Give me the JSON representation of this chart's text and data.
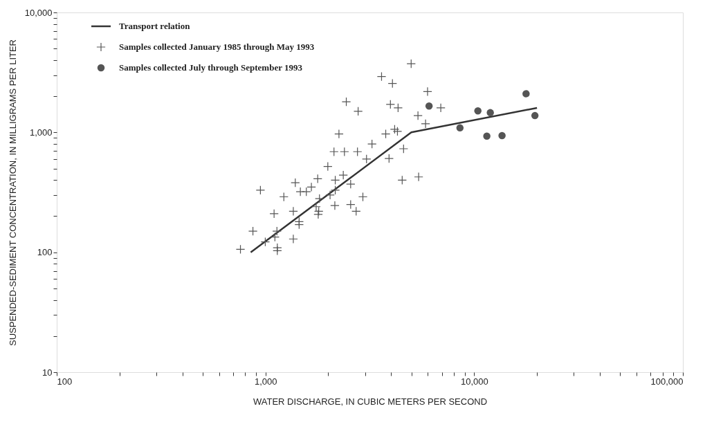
{
  "chart_data": {
    "type": "scatter",
    "xlabel": "WATER DISCHARGE, IN CUBIC METERS PER SECOND",
    "ylabel": "SUSPENDED-SEDIMENT CONCENTRATION, IN MILLIGRAMS PER LITER",
    "log": "xy",
    "grid": false,
    "legend": "top left",
    "xlim": [
      100,
      100000
    ],
    "ylim": [
      10,
      10000
    ],
    "xticks": [
      100,
      {
        "value": 200,
        "label": null
      },
      {
        "value": 300,
        "label": null
      },
      {
        "value": 400,
        "label": null
      },
      {
        "value": 500,
        "label": null
      },
      {
        "value": 600,
        "label": null
      },
      {
        "value": 700,
        "label": null
      },
      {
        "value": 800,
        "label": null
      },
      {
        "value": 900,
        "label": null
      },
      {
        "value": 1000,
        "label": "1,000"
      },
      {
        "value": 2000,
        "label": null
      },
      {
        "value": 3000,
        "label": null
      },
      {
        "value": 4000,
        "label": null
      },
      {
        "value": 5000,
        "label": null
      },
      {
        "value": 6000,
        "label": null
      },
      {
        "value": 7000,
        "label": null
      },
      {
        "value": 8000,
        "label": null
      },
      {
        "value": 9000,
        "label": null
      },
      {
        "value": 10000,
        "label": "10,000"
      },
      {
        "value": 20000,
        "label": null
      },
      {
        "value": 30000,
        "label": null
      },
      {
        "value": 40000,
        "label": null
      },
      {
        "value": 50000,
        "label": null
      },
      {
        "value": 60000,
        "label": null
      },
      {
        "value": 70000,
        "label": null
      },
      {
        "value": 80000,
        "label": null
      },
      {
        "value": 90000,
        "label": null
      },
      {
        "value": 100000,
        "label": "100,000"
      }
    ],
    "yticks": [
      10,
      {
        "value": 20,
        "label": null
      },
      {
        "value": 30,
        "label": null
      },
      {
        "value": 40,
        "label": null
      },
      {
        "value": 50,
        "label": null
      },
      {
        "value": 60,
        "label": null
      },
      {
        "value": 70,
        "label": null
      },
      {
        "value": 80,
        "label": null
      },
      {
        "value": 90,
        "label": null
      },
      100,
      {
        "value": 200,
        "label": null
      },
      {
        "value": 300,
        "label": null
      },
      {
        "value": 400,
        "label": null
      },
      {
        "value": 500,
        "label": null
      },
      {
        "value": 600,
        "label": null
      },
      {
        "value": 700,
        "label": null
      },
      {
        "value": 800,
        "label": null
      },
      {
        "value": 900,
        "label": null
      },
      {
        "value": 1000,
        "label": "1,000"
      },
      {
        "value": 2000,
        "label": null
      },
      {
        "value": 3000,
        "label": null
      },
      {
        "value": 4000,
        "label": null
      },
      {
        "value": 5000,
        "label": null
      },
      {
        "value": 6000,
        "label": null
      },
      {
        "value": 7000,
        "label": null
      },
      {
        "value": 8000,
        "label": null
      },
      {
        "value": 9000,
        "label": null
      },
      {
        "value": 10000,
        "label": "10,000"
      }
    ],
    "series": [
      {
        "name": "Transport relation",
        "type": "line",
        "color": "#333333",
        "line_style": "solid",
        "marker": "none",
        "x": [
          850,
          5000,
          20000
        ],
        "values": [
          100,
          1000,
          1600
        ]
      },
      {
        "name": "Samples collected January 1985 through May 1993",
        "type": "scatter",
        "color": "#555555",
        "marker": "cross",
        "x": [
          4990,
          3600,
          4060,
          5980,
          2440,
          2780,
          3970,
          4320,
          6920,
          5380,
          5850,
          4160,
          4290,
          3770,
          2250,
          3240,
          4590,
          2130,
          2390,
          2760,
          3050,
          3910,
          1990,
          2360,
          2160,
          4520,
          5420,
          1780,
          1390,
          2560,
          1660,
          1570,
          1470,
          2160,
          946,
          1225,
          2930,
          2040,
          1815,
          1750,
          2150,
          2560,
          2720,
          1800,
          1790,
          1360,
          1100,
          1450,
          1450,
          1135,
          871,
          1110,
          1360,
          998,
          1140,
          1140,
          759
        ],
        "values": [
          3740,
          2920,
          2560,
          2190,
          1800,
          1500,
          1710,
          1600,
          1600,
          1380,
          1180,
          1060,
          1020,
          970,
          970,
          800,
          730,
          690,
          690,
          690,
          600,
          605,
          520,
          440,
          400,
          400,
          425,
          410,
          380,
          370,
          350,
          320,
          320,
          330,
          330,
          290,
          290,
          300,
          280,
          240,
          245,
          250,
          220,
          220,
          207,
          220,
          210,
          180,
          170,
          150,
          150,
          134,
          129,
          122,
          109,
          103,
          106
        ]
      },
      {
        "name": "Samples collected July through September 1993",
        "type": "scatter",
        "color": "#555555",
        "marker": "circle",
        "x": [
          6080,
          8550,
          10420,
          11950,
          11500,
          13600,
          17730,
          19550
        ],
        "values": [
          1660,
          1090,
          1510,
          1460,
          930,
          940,
          2100,
          1380
        ]
      }
    ]
  }
}
